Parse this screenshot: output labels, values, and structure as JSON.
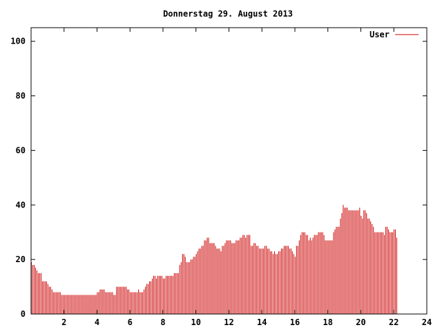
{
  "chart_data": {
    "type": "bar",
    "title": "Donnerstag 29. August 2013",
    "xlabel": "",
    "ylabel": "",
    "xlim": [
      0,
      24
    ],
    "ylim": [
      0,
      105
    ],
    "xticks": [
      "2",
      "4",
      "6",
      "8",
      "10",
      "12",
      "14",
      "16",
      "18",
      "20",
      "22",
      "24"
    ],
    "yticks": [
      "0",
      "20",
      "40",
      "60",
      "80",
      "100"
    ],
    "grid": false,
    "legend_position": "top-right",
    "bar_color": "#cc0000",
    "series": [
      {
        "name": "User",
        "sample_interval_hours": 0.0833,
        "values": [
          19,
          18,
          18,
          17,
          16,
          15,
          15,
          15,
          12,
          12,
          12,
          12,
          11,
          10,
          10,
          9,
          8,
          8,
          8,
          8,
          8,
          8,
          7,
          7,
          7,
          7,
          7,
          7,
          7,
          7,
          7,
          7,
          7,
          7,
          7,
          7,
          7,
          7,
          7,
          7,
          7,
          7,
          7,
          7,
          7,
          7,
          7,
          7,
          8,
          8,
          9,
          9,
          9,
          9,
          8,
          8,
          8,
          8,
          8,
          8,
          7,
          7,
          10,
          10,
          10,
          10,
          10,
          10,
          10,
          10,
          9,
          9,
          8,
          8,
          8,
          8,
          8,
          8,
          9,
          8,
          8,
          8,
          9,
          10,
          11,
          11,
          12,
          12,
          13,
          14,
          14,
          13,
          14,
          14,
          14,
          14,
          13,
          13,
          14,
          14,
          14,
          14,
          14,
          14,
          15,
          15,
          15,
          15,
          18,
          19,
          22,
          22,
          21,
          19,
          19,
          19,
          20,
          20,
          21,
          21,
          22,
          23,
          24,
          24,
          25,
          25,
          27,
          27,
          28,
          28,
          26,
          26,
          26,
          26,
          25,
          24,
          24,
          24,
          23,
          25,
          25,
          26,
          27,
          27,
          27,
          27,
          26,
          26,
          26,
          27,
          27,
          27,
          28,
          28,
          29,
          29,
          28,
          29,
          29,
          29,
          25,
          25,
          26,
          26,
          25,
          25,
          24,
          24,
          24,
          24,
          25,
          25,
          24,
          24,
          23,
          23,
          22,
          23,
          22,
          22,
          23,
          23,
          24,
          24,
          25,
          25,
          25,
          25,
          24,
          24,
          23,
          22,
          21,
          25,
          25,
          27,
          29,
          30,
          30,
          30,
          29,
          29,
          27,
          28,
          27,
          28,
          29,
          29,
          29,
          30,
          30,
          30,
          30,
          29,
          27,
          27,
          27,
          27,
          27,
          27,
          30,
          31,
          32,
          32,
          32,
          35,
          37,
          40,
          39,
          39,
          39,
          38,
          38,
          38,
          38,
          38,
          38,
          38,
          38,
          39,
          36,
          35,
          38,
          38,
          37,
          35,
          35,
          34,
          33,
          32,
          30,
          30,
          30,
          30,
          30,
          30,
          30,
          29,
          32,
          32,
          31,
          30,
          30,
          30,
          31,
          31,
          28
        ]
      }
    ]
  }
}
